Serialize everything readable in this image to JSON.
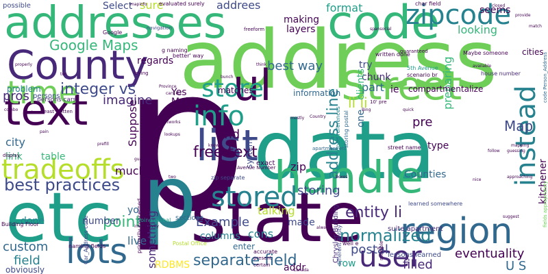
{
  "word_cloud": {
    "palette": {
      "dark_purple": "#440154",
      "purple": "#482878",
      "indigo": "#3e4a89",
      "blue": "#31688e",
      "teal": "#26828e",
      "green_teal": "#1f9e89",
      "green": "#35b779",
      "light_green": "#6ece58",
      "yellow_green": "#b5de2b",
      "yellow": "#fde725"
    },
    "words": [
      {
        "text": "p",
        "color": "#440154",
        "orientation": "horizontal"
      },
      {
        "text": "address",
        "color": "#6ece58",
        "orientation": "horizontal"
      },
      {
        "text": "data",
        "color": "#1f9e89",
        "orientation": "horizontal"
      },
      {
        "text": "state",
        "color": "#440154",
        "orientation": "horizontal"
      },
      {
        "text": "etc",
        "color": "#1f9e89",
        "orientation": "horizontal"
      },
      {
        "text": "p",
        "color": "#26828e",
        "orientation": "horizontal"
      },
      {
        "text": "addresses",
        "color": "#35b779",
        "orientation": "horizontal"
      },
      {
        "text": "County",
        "color": "#482878",
        "orientation": "horizontal"
      },
      {
        "text": "handle",
        "color": "#35b779",
        "orientation": "horizontal"
      },
      {
        "text": "code",
        "color": "#35b779",
        "orientation": "horizontal"
      },
      {
        "text": "text",
        "color": "#440154",
        "orientation": "horizontal"
      },
      {
        "text": "time",
        "color": "#6ece58",
        "orientation": "horizontal"
      },
      {
        "text": "Street",
        "color": "#6ece58",
        "orientation": "horizontal"
      },
      {
        "text": "region",
        "color": "#31688e",
        "orientation": "horizontal"
      },
      {
        "text": "list",
        "color": "#3e4a89",
        "orientation": "horizontal"
      },
      {
        "text": "lots",
        "color": "#31688e",
        "orientation": "horizontal"
      },
      {
        "text": "ul",
        "color": "#440154",
        "orientation": "horizontal"
      },
      {
        "text": "user",
        "color": "#482878",
        "orientation": "horizontal"
      },
      {
        "text": "zipcode",
        "color": "#26828e",
        "orientation": "horizontal"
      },
      {
        "text": "instead",
        "color": "#26828e",
        "orientation": "vertical"
      },
      {
        "text": "info",
        "color": "#1f9e89",
        "orientation": "horizontal"
      },
      {
        "text": "store",
        "color": "#1f9e89",
        "orientation": "horizontal"
      },
      {
        "text": "stored",
        "color": "#26828e",
        "orientation": "horizontal"
      },
      {
        "text": "tradeoffs",
        "color": "#b5de2b",
        "orientation": "horizontal"
      },
      {
        "text": "best practices",
        "color": "#3e4a89",
        "orientation": "horizontal"
      },
      {
        "text": "integer vs",
        "color": "#3e4a89",
        "orientation": "horizontal"
      },
      {
        "text": "separate field",
        "color": "#31688e",
        "orientation": "horizontal"
      },
      {
        "text": "Google Maps",
        "color": "#35b779",
        "orientation": "horizontal"
      },
      {
        "text": "free text",
        "color": "#440154",
        "orientation": "horizontal"
      },
      {
        "text": "address line",
        "color": "#26828e",
        "orientation": "vertical"
      },
      {
        "text": "entity li",
        "color": "#482878",
        "orientation": "horizontal"
      },
      {
        "text": "normalized",
        "color": "#26828e",
        "orientation": "horizontal"
      },
      {
        "text": "point",
        "color": "#35b779",
        "orientation": "horizontal"
      },
      {
        "text": "field",
        "color": "#26828e",
        "orientation": "horizontal"
      },
      {
        "text": "best way",
        "color": "#31688e",
        "orientation": "horizontal"
      },
      {
        "text": "li li",
        "color": "#b5de2b",
        "orientation": "horizontal"
      },
      {
        "text": "find",
        "color": "#440154",
        "orientation": "horizontal"
      },
      {
        "text": "Map",
        "color": "#3e4a89",
        "orientation": "horizontal"
      },
      {
        "text": "pros",
        "color": "#482878",
        "orientation": "horizontal"
      },
      {
        "text": "imagine",
        "color": "#482878",
        "orientation": "horizontal"
      },
      {
        "text": "regards",
        "color": "#440154",
        "orientation": "horizontal"
      },
      {
        "text": "storing",
        "color": "#3e4a89",
        "orientation": "horizontal"
      },
      {
        "text": "Example",
        "color": "#3e4a89",
        "orientation": "horizontal"
      },
      {
        "text": "custom",
        "color": "#31688e",
        "orientation": "horizontal"
      },
      {
        "text": "something",
        "color": "#482878",
        "orientation": "vertical"
      },
      {
        "text": "postal",
        "color": "#3e4a89",
        "orientation": "horizontal"
      },
      {
        "text": "eventuality",
        "color": "#440154",
        "orientation": "horizontal"
      },
      {
        "text": "filled",
        "color": "#482878",
        "orientation": "horizontal"
      },
      {
        "text": "U S",
        "color": "#31688e",
        "orientation": "horizontal"
      },
      {
        "text": "kitchener",
        "color": "#440154",
        "orientation": "vertical"
      },
      {
        "text": "cons",
        "color": "#26828e",
        "orientation": "horizontal"
      },
      {
        "text": "looking",
        "color": "#35b779",
        "orientation": "horizontal"
      },
      {
        "text": "preparing",
        "color": "#35b779",
        "orientation": "vertical"
      },
      {
        "text": "addrees",
        "color": "#3e4a89",
        "orientation": "horizontal"
      },
      {
        "text": "sure",
        "color": "#b5de2b",
        "orientation": "horizontal"
      },
      {
        "text": "Select",
        "color": "#3e4a89",
        "orientation": "horizontal"
      },
      {
        "text": "format",
        "color": "#1f9e89",
        "orientation": "horizontal"
      },
      {
        "text": "making",
        "color": "#440154",
        "orientation": "horizontal"
      },
      {
        "text": "layers",
        "color": "#440154",
        "orientation": "horizontal"
      },
      {
        "text": "seems",
        "color": "#440154",
        "orientation": "horizontal"
      },
      {
        "text": "try",
        "color": "#3e4a89",
        "orientation": "horizontal"
      },
      {
        "text": "part",
        "color": "#31688e",
        "orientation": "horizontal"
      },
      {
        "text": "chunk",
        "color": "#482878",
        "orientation": "horizontal"
      },
      {
        "text": "pre",
        "color": "#440154",
        "orientation": "horizontal"
      },
      {
        "text": "type",
        "color": "#440154",
        "orientation": "horizontal"
      },
      {
        "text": "zip",
        "color": "#440154",
        "orientation": "horizontal"
      },
      {
        "text": "made",
        "color": "#3e4a89",
        "orientation": "horizontal"
      },
      {
        "text": "much",
        "color": "#440154",
        "orientation": "horizontal"
      },
      {
        "text": "live",
        "color": "#31688e",
        "orientation": "horizontal"
      },
      {
        "text": "number",
        "color": "#3e4a89",
        "orientation": "horizontal"
      },
      {
        "text": "done",
        "color": "#26828e",
        "orientation": "horizontal"
      },
      {
        "text": "city",
        "color": "#31688e",
        "orientation": "horizontal"
      },
      {
        "text": "link",
        "color": "#35b779",
        "orientation": "horizontal"
      },
      {
        "text": "table",
        "color": "#35b779",
        "orientation": "horizontal"
      },
      {
        "text": "talking",
        "color": "#b5de2b",
        "orientation": "horizontal"
      },
      {
        "text": "matches",
        "color": "#440154",
        "orientation": "horizontal"
      },
      {
        "text": "Yes",
        "color": "#440154",
        "orientation": "horizontal"
      },
      {
        "text": "Main",
        "color": "#440154",
        "orientation": "horizontal"
      },
      {
        "text": "Counties",
        "color": "#31688e",
        "orientation": "horizontal"
      },
      {
        "text": "row",
        "color": "#1f9e89",
        "orientation": "horizontal"
      },
      {
        "text": "addr",
        "color": "#440154",
        "orientation": "horizontal"
      },
      {
        "text": "RDBMS",
        "color": "#fde725",
        "orientation": "horizontal"
      },
      {
        "text": "obviously",
        "color": "#3e4a89",
        "orientation": "horizontal"
      },
      {
        "text": "problem",
        "color": "#26828e",
        "orientation": "horizontal"
      },
      {
        "text": "clients",
        "color": "#35b779",
        "orientation": "vertical"
      },
      {
        "text": "ie",
        "color": "#440154",
        "orientation": "horizontal"
      },
      {
        "text": "one",
        "color": "#31688e",
        "orientation": "vertical"
      },
      {
        "text": "compartmentalize",
        "color": "#440154",
        "orientation": "horizontal"
      },
      {
        "text": "information",
        "color": "#31688e",
        "orientation": "horizontal"
      },
      {
        "text": "Suppose",
        "color": "#440154",
        "orientation": "vertical"
      },
      {
        "text": "yo",
        "color": "#31688e",
        "orientation": "horizontal"
      },
      {
        "text": "sections",
        "color": "#31688e",
        "orientation": "horizontal"
      },
      {
        "text": "columns",
        "color": "#26828e",
        "orientation": "horizontal"
      },
      {
        "text": "system",
        "color": "#3e4a89",
        "orientation": "vertical"
      },
      {
        "text": "enter",
        "color": "#31688e",
        "orientation": "horizontal"
      },
      {
        "text": "exact",
        "color": "#440154",
        "orientation": "horizontal"
      },
      {
        "text": "possible",
        "color": "#3e4a89",
        "orientation": "horizontal"
      },
      {
        "text": "persons",
        "color": "#3e4a89",
        "orientation": "horizontal"
      },
      {
        "text": "zip separate",
        "color": "#3e4a89",
        "orientation": "horizontal"
      },
      {
        "text": "street name",
        "color": "#440154",
        "orientation": "horizontal"
      },
      {
        "text": "house number",
        "color": "#482878",
        "orientation": "horizontal"
      },
      {
        "text": "cities",
        "color": "#440154",
        "orientation": "horizontal"
      },
      {
        "text": "char field",
        "color": "#440154",
        "orientation": "horizontal"
      },
      {
        "text": "Google",
        "color": "#440154",
        "orientation": "horizontal"
      },
      {
        "text": "navigation",
        "color": "#3e4a89",
        "orientation": "horizontal"
      },
      {
        "text": "evaluated surely",
        "color": "#440154",
        "orientation": "horizontal"
      },
      {
        "text": "lessons learned",
        "color": "#3e4a89",
        "orientation": "horizontal"
      },
      {
        "text": "suite apartment",
        "color": "#482878",
        "orientation": "horizontal"
      },
      {
        "text": "Building Floor",
        "color": "#440154",
        "orientation": "horizontal"
      },
      {
        "text": "Chrysler Building",
        "color": "#482878",
        "orientation": "vertical"
      },
      {
        "text": "naming fields",
        "color": "#440154",
        "orientation": "horizontal"
      },
      {
        "text": "Maybe someone",
        "color": "#440154",
        "orientation": "horizontal"
      },
      {
        "text": "written done",
        "color": "#440154",
        "orientation": "horizontal"
      },
      {
        "text": "guaranteed",
        "color": "#440154",
        "orientation": "horizontal"
      },
      {
        "text": "5th Avenue",
        "color": "#1f9e89",
        "orientation": "horizontal"
      },
      {
        "text": "scenario br",
        "color": "#440154",
        "orientation": "horizontal"
      },
      {
        "text": "freeform",
        "color": "#440154",
        "orientation": "horizontal"
      },
      {
        "text": "Car_Address code",
        "color": "#3e4a89",
        "orientation": "vertical"
      },
      {
        "text": "code Person_Address",
        "color": "#31688e",
        "orientation": "vertical"
      },
      {
        "text": "fields appropriately",
        "color": "#6ece58",
        "orientation": "vertical"
      },
      {
        "text": "Avenue Number",
        "color": "#440154",
        "orientation": "horizontal"
      },
      {
        "text": "apartment etc",
        "color": "#31688e",
        "orientation": "horizontal"
      },
      {
        "text": "well e",
        "color": "#440154",
        "orientation": "horizontal"
      },
      {
        "text": "learned somewhere",
        "color": "#3e4a89",
        "orientation": "horizontal"
      },
      {
        "text": "storing postal",
        "color": "#31688e",
        "orientation": "vertical"
      },
      {
        "text": "good references",
        "color": "#26828e",
        "orientation": "vertical"
      },
      {
        "text": "buildings persons",
        "color": "#440154",
        "orientation": "vertical"
      },
      {
        "text": "primarily concerned",
        "color": "#440154",
        "orientation": "vertical"
      },
      {
        "text": "going global",
        "color": "#1f9e89",
        "orientation": "horizontal"
      },
      {
        "text": "Postal Office",
        "color": "#b5de2b",
        "orientation": "horizontal"
      },
      {
        "text": "persons cars",
        "color": "#482878",
        "orientation": "horizontal"
      },
      {
        "text": "least written",
        "color": "#440154",
        "orientation": "horizontal"
      },
      {
        "text": "g naming",
        "color": "#440154",
        "orientation": "horizontal"
      },
      {
        "text": "better' way",
        "color": "#440154",
        "orientation": "horizontal"
      },
      {
        "text": "different entity",
        "color": "#3e4a89",
        "orientation": "vertical"
      },
      {
        "text": "accurate",
        "color": "#440154",
        "orientation": "horizontal"
      },
      {
        "text": "present",
        "color": "#440154",
        "orientation": "horizontal"
      },
      {
        "text": "certain",
        "color": "#440154",
        "orientation": "horizontal"
      },
      {
        "text": "multiple",
        "color": "#440154",
        "orientation": "vertical"
      },
      {
        "text": "mapinfo",
        "color": "#440154",
        "orientation": "horizontal"
      },
      {
        "text": "spansocial",
        "color": "#440154",
        "orientation": "horizontal"
      },
      {
        "text": "available",
        "color": "#440154",
        "orientation": "horizontal"
      },
      {
        "text": "provide",
        "color": "#440154",
        "orientation": "horizontal"
      },
      {
        "text": "follow",
        "color": "#440154",
        "orientation": "horizontal"
      },
      {
        "text": "mapping",
        "color": "#440154",
        "orientation": "horizontal"
      },
      {
        "text": "guessing",
        "color": "#440154",
        "orientation": "horizontal"
      },
      {
        "text": "approaching",
        "color": "#440154",
        "orientation": "horizontal"
      },
      {
        "text": "suggest",
        "color": "#440154",
        "orientation": "horizontal"
      },
      {
        "text": "interactivity",
        "color": "#440154",
        "orientation": "horizontal"
      },
      {
        "text": "networks",
        "color": "#440154",
        "orientation": "horizontal"
      },
      {
        "text": "lookups",
        "color": "#440154",
        "orientation": "horizontal"
      },
      {
        "text": "guarantees",
        "color": "#440154",
        "orientation": "horizontal"
      },
      {
        "text": "prefill",
        "color": "#440154",
        "orientation": "horizontal"
      },
      {
        "text": "display",
        "color": "#440154",
        "orientation": "horizontal"
      },
      {
        "text": "break",
        "color": "#440154",
        "orientation": "horizontal"
      },
      {
        "text": "pain",
        "color": "#440154",
        "orientation": "horizontal"
      },
      {
        "text": "trying",
        "color": "#440154",
        "orientation": "horizontal"
      },
      {
        "text": "properly",
        "color": "#440154",
        "orientation": "horizontal"
      },
      {
        "text": "think",
        "color": "#440154",
        "orientation": "horizontal"
      },
      {
        "text": "Province",
        "color": "#440154",
        "orientation": "horizontal"
      },
      {
        "text": "cars etc",
        "color": "#440154",
        "orientation": "horizontal"
      },
      {
        "text": "Country",
        "color": "#440154",
        "orientation": "horizontal"
      },
      {
        "text": "Canada",
        "color": "#440154",
        "orientation": "horizontal"
      },
      {
        "text": "Bing",
        "color": "#440154",
        "orientation": "horizontal"
      },
      {
        "text": "quick",
        "color": "#440154",
        "orientation": "horizontal"
      },
      {
        "text": "always",
        "color": "#440154",
        "orientation": "horizontal"
      },
      {
        "text": "nice",
        "color": "#440154",
        "orientation": "horizontal"
      },
      {
        "text": "via",
        "color": "#440154",
        "orientation": "horizontal"
      },
      {
        "text": "two",
        "color": "#440154",
        "orientation": "horizontal"
      },
      {
        "text": "bunch",
        "color": "#440154",
        "orientation": "horizontal"
      },
      {
        "text": "mostly",
        "color": "#440154",
        "orientation": "horizontal"
      },
      {
        "text": "match",
        "color": "#440154",
        "orientation": "horizontal"
      },
      {
        "text": "closed",
        "color": "#440154",
        "orientation": "horizontal"
      },
      {
        "text": "ton",
        "color": "#440154",
        "orientation": "horizontal"
      },
      {
        "text": "combo",
        "color": "#440154",
        "orientation": "horizontal"
      },
      {
        "text": "boxes",
        "color": "#440154",
        "orientation": "horizontal"
      },
      {
        "text": "know",
        "color": "#440154",
        "orientation": "horizontal"
      },
      {
        "text": "10' pre",
        "color": "#440154",
        "orientation": "horizontal"
      }
    ]
  }
}
